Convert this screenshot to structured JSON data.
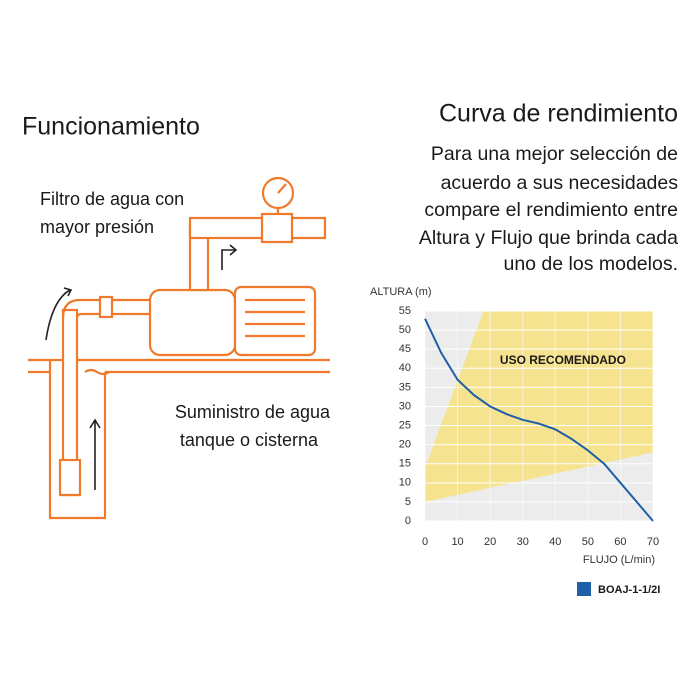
{
  "left": {
    "title": "Funcionamiento",
    "label_top": [
      "Filtro de agua con",
      "mayor presión"
    ],
    "label_bottom": [
      "Suministro de agua",
      "tanque o cisterna"
    ]
  },
  "right": {
    "title": "Curva de rendimiento",
    "description": [
      "Para una mejor selección de",
      "acuerdo a sus necesidades",
      "compare el rendimiento entre",
      "Altura y Flujo que brinda cada",
      "uno de los modelos."
    ]
  },
  "chart_data": {
    "type": "line",
    "y_label": "ALTURA (m)",
    "x_label": "FLUJO (L/min)",
    "annotation": "USO RECOMENDADO",
    "x": [
      0,
      5,
      10,
      15,
      20,
      25,
      30,
      35,
      40,
      45,
      50,
      55,
      60,
      65,
      70
    ],
    "series": [
      {
        "name": "BOAJ-1-1/2I",
        "color": "#1f5fa8",
        "values": [
          53,
          44,
          37,
          33,
          30,
          28,
          26.5,
          25.5,
          24,
          21.5,
          18.5,
          15,
          10,
          5,
          0
        ]
      }
    ],
    "region": {
      "x": [
        0,
        18,
        70,
        70,
        0
      ],
      "y": [
        14,
        55,
        55,
        18,
        5
      ],
      "color": "#f6e38f"
    },
    "xlim": [
      0,
      70
    ],
    "ylim": [
      0,
      55
    ],
    "xticks": [
      0,
      10,
      20,
      30,
      40,
      50,
      60,
      70
    ],
    "yticks": [
      0,
      5,
      10,
      15,
      20,
      25,
      30,
      35,
      40,
      45,
      50,
      55
    ],
    "grid": true
  }
}
